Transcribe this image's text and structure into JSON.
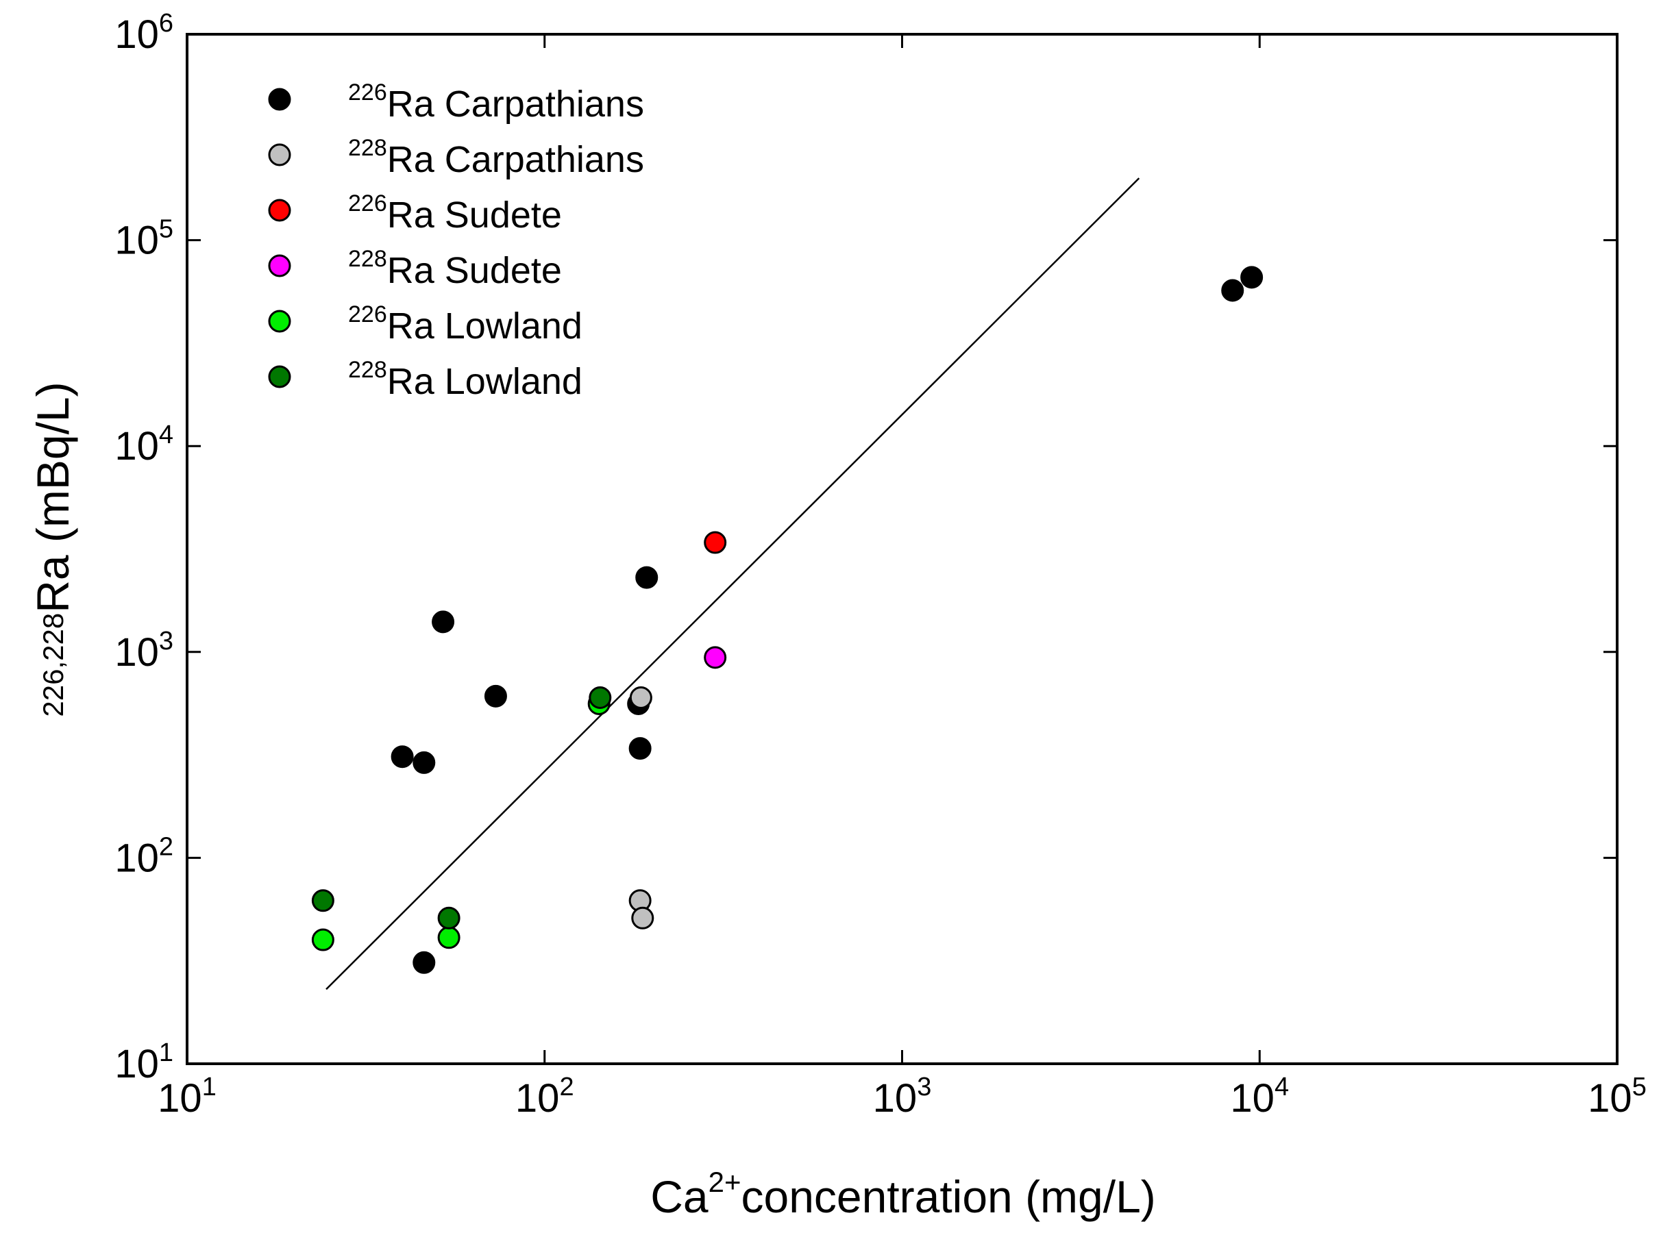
{
  "chart_data": {
    "type": "scatter",
    "title": "",
    "xscale": "log",
    "yscale": "log",
    "xlim": [
      10,
      100000
    ],
    "ylim": [
      10,
      1000000
    ],
    "xlabel": {
      "base": "Ca",
      "sup": "2+",
      "rest": "concentration (mg/L)"
    },
    "ylabel": {
      "sup": "226,228",
      "base": "Ra",
      "rest": " (mBq/L)"
    },
    "xticks": [
      {
        "value": 10,
        "base": "10",
        "exp": "1"
      },
      {
        "value": 100,
        "base": "10",
        "exp": "2"
      },
      {
        "value": 1000,
        "base": "10",
        "exp": "3"
      },
      {
        "value": 10000,
        "base": "10",
        "exp": "4"
      },
      {
        "value": 100000,
        "base": "10",
        "exp": "5"
      }
    ],
    "yticks": [
      {
        "value": 10,
        "base": "10",
        "exp": "1"
      },
      {
        "value": 100,
        "base": "10",
        "exp": "2"
      },
      {
        "value": 1000,
        "base": "10",
        "exp": "3"
      },
      {
        "value": 10000,
        "base": "10",
        "exp": "4"
      },
      {
        "value": 100000,
        "base": "10",
        "exp": "5"
      },
      {
        "value": 1000000,
        "base": "10",
        "exp": "6"
      }
    ],
    "legend_position": "top-left",
    "series": [
      {
        "name": "226Ra Carpathians",
        "sup": "226",
        "label": "Ra Carpathians",
        "color": "#000000",
        "points": [
          [
            40,
            310
          ],
          [
            46,
            290
          ],
          [
            52,
            1400
          ],
          [
            73,
            610
          ],
          [
            183,
            560
          ],
          [
            185,
            340
          ],
          [
            193,
            2300
          ],
          [
            8400,
            57000
          ],
          [
            9500,
            66000
          ],
          [
            46,
            31
          ]
        ]
      },
      {
        "name": "228Ra Carpathians",
        "sup": "228",
        "label": "Ra Carpathians",
        "color": "#c0c0c0",
        "points": [
          [
            186,
            600
          ],
          [
            185,
            62
          ],
          [
            188,
            51
          ]
        ]
      },
      {
        "name": "226Ra Sudete",
        "sup": "226",
        "label": "Ra Sudete",
        "color": "#ff0000",
        "points": [
          [
            300,
            3400
          ]
        ]
      },
      {
        "name": "228Ra Sudete",
        "sup": "228",
        "label": "Ra Sudete",
        "color": "#ff00ff",
        "points": [
          [
            300,
            940
          ]
        ]
      },
      {
        "name": "226Ra Lowland",
        "sup": "226",
        "label": "Ra Lowland",
        "color": "#00ee00",
        "points": [
          [
            24,
            40
          ],
          [
            54,
            41
          ],
          [
            142,
            560
          ]
        ]
      },
      {
        "name": "228Ra Lowland",
        "sup": "228",
        "label": "Ra Lowland",
        "color": "#007700",
        "points": [
          [
            24,
            62
          ],
          [
            54,
            51
          ],
          [
            143,
            600
          ]
        ]
      }
    ],
    "fit_line": {
      "x": [
        24.5,
        4600
      ],
      "y": [
        23,
        200000
      ]
    }
  }
}
